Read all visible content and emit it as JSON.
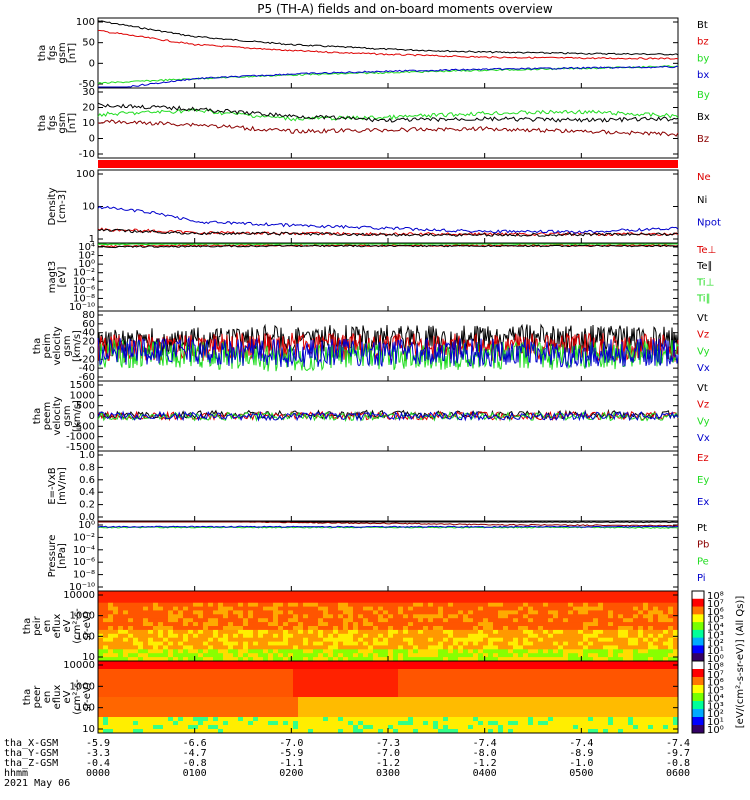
{
  "title": "P5 (TH-A) fields and on-board moments overview",
  "date_label": "2021 May 06",
  "colors": {
    "black": "#000000",
    "red": "#dd0000",
    "green": "#22dd22",
    "blue": "#0000cc",
    "darkred": "#8b0000",
    "brightred": "#ff0000"
  },
  "panels": [
    {
      "id": "p1",
      "ylabel": [
        "tha",
        "fgs",
        "gsm",
        "[nT]"
      ],
      "ticks": [
        "100",
        "50",
        "0",
        "-50"
      ],
      "legend": [
        {
          "t": "Bt",
          "c": "black"
        },
        {
          "t": "bz",
          "c": "red"
        },
        {
          "t": "by",
          "c": "green"
        },
        {
          "t": "bx",
          "c": "blue"
        }
      ]
    },
    {
      "id": "p2",
      "ylabel": [
        "tha",
        "fgs",
        "gsm",
        "[nT]"
      ],
      "ticks": [
        "30",
        "20",
        "10",
        "0",
        "-10"
      ],
      "legend": [
        {
          "t": "By",
          "c": "green"
        },
        {
          "t": "Bx",
          "c": "black"
        },
        {
          "t": "Bz",
          "c": "darkred"
        }
      ]
    },
    {
      "id": "p3",
      "ylabel": [
        "Density",
        "[cm-3]"
      ],
      "ticks": [
        "100",
        "10",
        "1"
      ],
      "legend": [
        {
          "t": "Ne",
          "c": "red"
        },
        {
          "t": "Ni",
          "c": "black"
        },
        {
          "t": "Npot",
          "c": "blue"
        }
      ]
    },
    {
      "id": "p4",
      "ylabel": [
        "magt3",
        "[eV]"
      ],
      "ticks": [
        "10⁴",
        "10²",
        "10⁰",
        "10⁻²",
        "10⁻⁴",
        "10⁻⁶",
        "10⁻⁸",
        "10⁻¹⁰"
      ],
      "legend": [
        {
          "t": "Te⊥",
          "c": "red"
        },
        {
          "t": "Te∥",
          "c": "black"
        },
        {
          "t": "Ti⊥",
          "c": "green"
        },
        {
          "t": "Ti∥",
          "c": "green"
        }
      ]
    },
    {
      "id": "p5",
      "ylabel": [
        "tha",
        "peim",
        "velocity",
        "gsm",
        "[km/s]"
      ],
      "ticks": [
        "80",
        "60",
        "40",
        "20",
        "0",
        "-20",
        "-40",
        "-60"
      ],
      "legend": [
        {
          "t": "Vt",
          "c": "black"
        },
        {
          "t": "Vz",
          "c": "red"
        },
        {
          "t": "Vy",
          "c": "green"
        },
        {
          "t": "Vx",
          "c": "blue"
        }
      ]
    },
    {
      "id": "p6",
      "ylabel": [
        "tha",
        "peem",
        "velocity",
        "gsm",
        "[km/s]"
      ],
      "ticks": [
        "1500",
        "1000",
        "500",
        "0",
        "-500",
        "-1000",
        "-1500"
      ],
      "legend": [
        {
          "t": "Vt",
          "c": "black"
        },
        {
          "t": "Vz",
          "c": "red"
        },
        {
          "t": "Vy",
          "c": "green"
        },
        {
          "t": "Vx",
          "c": "blue"
        }
      ]
    },
    {
      "id": "p7",
      "ylabel": [
        "E=-VxB",
        "[mV/m]"
      ],
      "ticks": [
        "1.0",
        "0.8",
        "0.6",
        "0.4",
        "0.2",
        "0.0"
      ],
      "legend": [
        {
          "t": "Ez",
          "c": "red"
        },
        {
          "t": "Ey",
          "c": "green"
        },
        {
          "t": "Ex",
          "c": "blue"
        }
      ]
    },
    {
      "id": "p8",
      "ylabel": [
        "Pressure",
        "[nPa]"
      ],
      "ticks": [
        "10⁰",
        "10⁻²",
        "10⁻⁴",
        "10⁻⁶",
        "10⁻⁸",
        "10⁻¹⁰"
      ],
      "legend": [
        {
          "t": "Pt",
          "c": "black"
        },
        {
          "t": "Pb",
          "c": "darkred"
        },
        {
          "t": "Pe",
          "c": "green"
        },
        {
          "t": "Pi",
          "c": "blue"
        }
      ]
    },
    {
      "id": "p9",
      "ylabel": [
        "tha",
        "peir",
        "en",
        "eflux",
        "eV",
        "(cm²-s-",
        "sr-eV)"
      ],
      "ticks": [
        "10000",
        "1000",
        "100",
        "10"
      ],
      "legend": []
    },
    {
      "id": "p10",
      "ylabel": [
        "tha",
        "peer",
        "en",
        "eflux",
        "eV",
        "(cm²-s-",
        "sr-eV)"
      ],
      "ticks": [
        "10000",
        "1000",
        "100",
        "10"
      ],
      "legend": []
    }
  ],
  "colorbar": {
    "ticks": [
      "10⁸",
      "10⁷",
      "10⁶",
      "10⁵",
      "10⁴",
      "10³",
      "10²",
      "10¹",
      "10⁰",
      "10⁸",
      "10⁷",
      "10⁶",
      "10⁵",
      "10⁴",
      "10³",
      "10²",
      "10¹",
      "10⁰"
    ],
    "label": "[eV/(cm²-s-sr-eV)] (All Qs)]",
    "label2": "eflux"
  },
  "footer": {
    "labels": [
      "tha_X-GSM",
      "tha_Y-GSM",
      "tha_Z-GSM",
      "hhmm"
    ],
    "rows": [
      [
        "-5.9",
        "-6.6",
        "-7.0",
        "-7.3",
        "-7.4",
        "-7.4",
        "-7.4"
      ],
      [
        "-3.3",
        "-4.7",
        "-5.9",
        "-7.0",
        "-8.0",
        "-8.9",
        "-9.7"
      ],
      [
        "-0.4",
        "-0.8",
        "-1.1",
        "-1.2",
        "-1.2",
        "-1.0",
        "-0.8"
      ],
      [
        "0000",
        "0100",
        "0200",
        "0300",
        "0400",
        "0500",
        "0600"
      ]
    ]
  },
  "chart_data": [
    {
      "type": "line",
      "title": "P5 (TH-A) fields and on-board moments overview",
      "ylabel": "tha fgs gsm [nT]",
      "ylim": [
        -50,
        100
      ],
      "x": [
        "0000",
        "0100",
        "0200",
        "0300",
        "0400",
        "0500",
        "0600"
      ],
      "series": [
        {
          "name": "Bt",
          "values": [
            94,
            60,
            43,
            33,
            27,
            24,
            22
          ]
        },
        {
          "name": "bz",
          "values": [
            73,
            43,
            30,
            22,
            16,
            14,
            13
          ]
        },
        {
          "name": "by",
          "values": [
            -40,
            -30,
            -22,
            -17,
            -12,
            -8,
            -3
          ]
        },
        {
          "name": "bx",
          "values": [
            -55,
            -30,
            -20,
            -14,
            -10,
            -7,
            -5
          ]
        }
      ]
    },
    {
      "type": "line",
      "ylabel": "tha fgs gsm [nT]",
      "ylim": [
        -20,
        30
      ],
      "x": [
        "0000",
        "0100",
        "0200",
        "0300",
        "0400",
        "0500",
        "0600"
      ],
      "series": [
        {
          "name": "By",
          "values": [
            11,
            14,
            8,
            9,
            12,
            13,
            10
          ]
        },
        {
          "name": "Bx",
          "values": [
            18,
            15,
            10,
            7,
            8,
            7,
            8
          ]
        },
        {
          "name": "Bz",
          "values": [
            6,
            4,
            -1,
            0,
            1,
            -1,
            -3
          ]
        }
      ]
    },
    {
      "type": "line",
      "ylabel": "Density [cm-3]",
      "ylim": [
        0.3,
        300
      ],
      "log": true,
      "x": [
        "0000",
        "0100",
        "0200",
        "0300",
        "0400",
        "0500",
        "0600"
      ],
      "series": [
        {
          "name": "Ne",
          "values": [
            1.1,
            0.8,
            0.75,
            0.7,
            0.7,
            0.7,
            0.7
          ]
        },
        {
          "name": "Ni",
          "values": [
            1.0,
            0.75,
            0.72,
            0.65,
            0.65,
            0.66,
            0.7
          ]
        },
        {
          "name": "Npot",
          "values": [
            9,
            2.2,
            1.6,
            1.2,
            0.9,
            0.85,
            1.2
          ]
        }
      ]
    },
    {
      "type": "line",
      "ylabel": "magt3 [eV]",
      "log": true,
      "ylim": [
        1e-10,
        10000.0
      ],
      "x": [
        "0000",
        "0100",
        "0200",
        "0300",
        "0400",
        "0500",
        "0600"
      ],
      "series": [
        {
          "name": "Te⊥",
          "values": [
            2000,
            3000,
            3000,
            3000,
            3000,
            3000,
            3000
          ]
        },
        {
          "name": "Te∥",
          "values": [
            1500,
            2000,
            2500,
            2500,
            2500,
            2500,
            2500
          ]
        },
        {
          "name": "Ti⊥",
          "values": [
            6000,
            8000,
            8000,
            8000,
            8000,
            8000,
            8000
          ]
        },
        {
          "name": "Ti∥",
          "values": [
            5000,
            7000,
            7000,
            7000,
            7000,
            7000,
            7000
          ]
        }
      ]
    },
    {
      "type": "line",
      "ylabel": "tha peim velocity gsm [km/s]",
      "ylim": [
        -60,
        80
      ],
      "x": [
        "0000",
        "0100",
        "0200",
        "0300",
        "0400",
        "0500",
        "0600"
      ],
      "series": [
        {
          "name": "Vt",
          "values": [
            15,
            20,
            25,
            25,
            25,
            25,
            20
          ]
        },
        {
          "name": "Vz",
          "values": [
            5,
            8,
            10,
            8,
            8,
            10,
            6
          ]
        },
        {
          "name": "Vy",
          "values": [
            -5,
            -8,
            -15,
            -10,
            -10,
            -10,
            -5
          ]
        },
        {
          "name": "Vx",
          "values": [
            0,
            -2,
            -5,
            -3,
            -3,
            -6,
            -2
          ]
        }
      ]
    },
    {
      "type": "line",
      "ylabel": "tha peem velocity gsm [km/s]",
      "ylim": [
        -1500,
        1500
      ],
      "x": [
        "0000",
        "0100",
        "0200",
        "0300",
        "0400",
        "0500",
        "0600"
      ],
      "series": [
        {
          "name": "Vt",
          "values": [
            50,
            50,
            60,
            70,
            60,
            60,
            50
          ]
        },
        {
          "name": "Vz",
          "values": [
            10,
            10,
            20,
            10,
            10,
            10,
            10
          ]
        },
        {
          "name": "Vy",
          "values": [
            -20,
            -20,
            -20,
            -20,
            -20,
            -20,
            -20
          ]
        },
        {
          "name": "Vx",
          "values": [
            0,
            0,
            0,
            0,
            0,
            0,
            0
          ]
        }
      ]
    },
    {
      "type": "line",
      "ylabel": "E=-VxB [mV/m]",
      "ylim": [
        0,
        1
      ],
      "x": [
        "0000",
        "0100",
        "0200",
        "0300",
        "0400",
        "0500",
        "0600"
      ],
      "series": []
    },
    {
      "type": "line",
      "ylabel": "Pressure [nPa]",
      "log": true,
      "ylim": [
        1e-10,
        1
      ],
      "x": [
        "0000",
        "0100",
        "0200",
        "0300",
        "0400",
        "0500",
        "0600"
      ],
      "series": [
        {
          "name": "Pt",
          "values": [
            2.5,
            1.5,
            1.2,
            1.0,
            0.8,
            0.7,
            0.7
          ]
        },
        {
          "name": "Pb",
          "values": [
            2.0,
            1.0,
            0.6,
            0.45,
            0.3,
            0.25,
            0.22
          ]
        },
        {
          "name": "Pe",
          "values": [
            0.12,
            0.12,
            0.12,
            0.12,
            0.12,
            0.12,
            0.1
          ]
        },
        {
          "name": "Pi",
          "values": [
            0.15,
            0.15,
            0.15,
            0.15,
            0.15,
            0.15,
            0.15
          ]
        }
      ]
    },
    {
      "type": "heatmap",
      "ylabel": "tha peir en eflux eV (cm²-s-sr-eV)",
      "ylim": [
        5,
        30000
      ],
      "log": true,
      "x": [
        "0000",
        "0100",
        "0200",
        "0300",
        "0400",
        "0500",
        "0600"
      ]
    },
    {
      "type": "heatmap",
      "ylabel": "tha peer en eflux eV (cm²-s-sr-eV)",
      "ylim": [
        5,
        30000
      ],
      "log": true,
      "x": [
        "0000",
        "0100",
        "0200",
        "0300",
        "0400",
        "0500",
        "0600"
      ]
    }
  ]
}
